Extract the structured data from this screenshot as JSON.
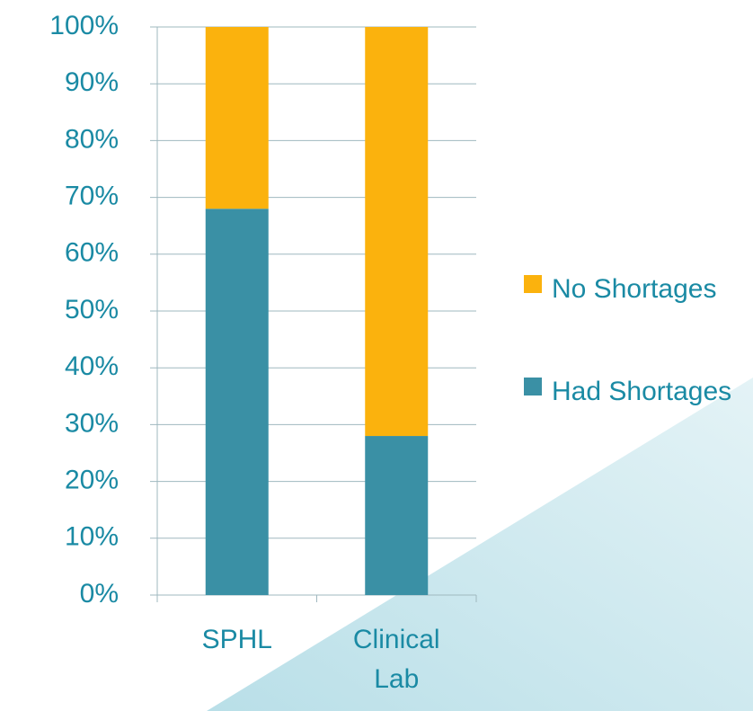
{
  "chart_data": {
    "type": "stacked_bar",
    "categories": [
      "SPHL",
      "Clinical Lab"
    ],
    "series": [
      {
        "name": "Had Shortages",
        "color": "#3a90a5",
        "values": [
          68,
          28
        ]
      },
      {
        "name": "No Shortages",
        "color": "#fbb20d",
        "values": [
          32,
          72
        ]
      }
    ],
    "ylim": [
      0,
      100
    ],
    "yticks": [
      {
        "value": 0,
        "label": "0%"
      },
      {
        "value": 10,
        "label": "10%"
      },
      {
        "value": 20,
        "label": "20%"
      },
      {
        "value": 30,
        "label": "30%"
      },
      {
        "value": 40,
        "label": "40%"
      },
      {
        "value": 50,
        "label": "50%"
      },
      {
        "value": 60,
        "label": "60%"
      },
      {
        "value": 70,
        "label": "70%"
      },
      {
        "value": 80,
        "label": "80%"
      },
      {
        "value": 90,
        "label": "90%"
      },
      {
        "value": 100,
        "label": "100%"
      }
    ],
    "grid": true,
    "legend": "right"
  }
}
